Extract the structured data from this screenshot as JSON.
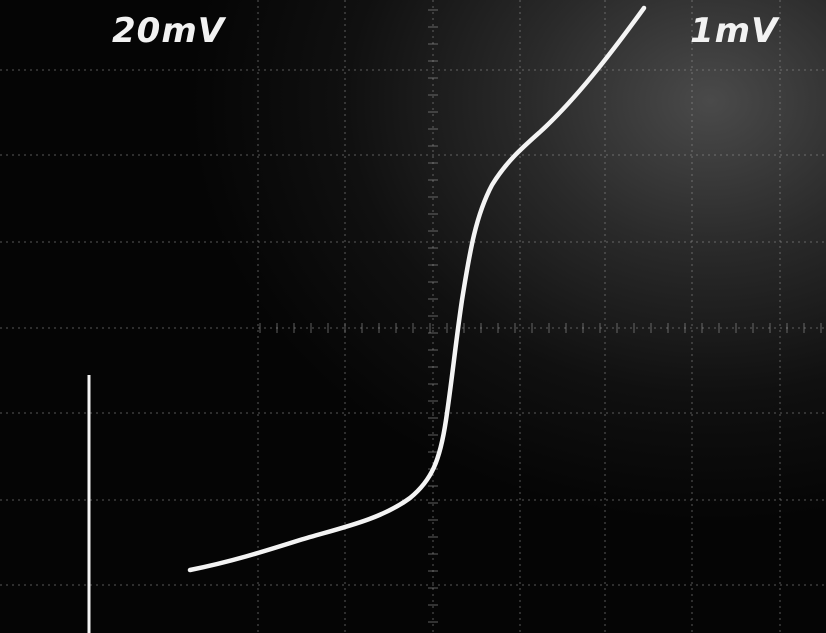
{
  "scope": {
    "left_sensitivity_label": "20mV",
    "right_sensitivity_label": "1mV"
  },
  "colors": {
    "trace": "#f4f4f4",
    "grid": "#9a9a9a",
    "screen_dark": "#050505",
    "screen_glow": "#4a4a4a"
  }
}
